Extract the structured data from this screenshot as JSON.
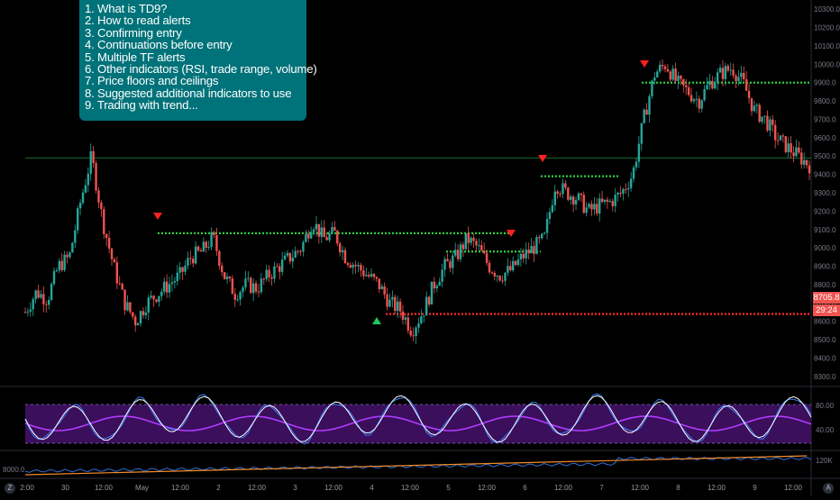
{
  "notes": [
    "1. What is TD9?",
    "2. How to read alerts",
    "3. Confirming entry",
    "4. Continuations before entry",
    "5. Multiple TF alerts",
    "6. Other indicators (RSI, trade range, volume)",
    "7. Price floors and ceilings",
    "8. Suggested additional indicators to use",
    "9. Trading with trend..."
  ],
  "price_scale": [
    "10300.0",
    "10200.0",
    "10100.0",
    "10000.0",
    "9900.0",
    "9800.0",
    "9700.0",
    "9600.0",
    "9500.0",
    "9400.0",
    "9300.0",
    "9200.0",
    "9100.0",
    "9000.0",
    "8900.0",
    "8800.0",
    "8700.0",
    "8600.0",
    "8500.0",
    "8400.0",
    "8300.0"
  ],
  "current_price": "8705.8",
  "countdown": "29:24",
  "rsi_scale": [
    "80.00",
    "40.00"
  ],
  "volume_left": "8000.0",
  "volume_right": "120K",
  "time_axis": [
    "2:00",
    "30",
    "12:00",
    "May",
    "12:00",
    "2",
    "12:00",
    "3",
    "12:00",
    "4",
    "12:00",
    "5",
    "12:00",
    "6",
    "12:00",
    "7",
    "12:00",
    "8",
    "12:00",
    "9",
    "12:00"
  ],
  "corner_left": "Z",
  "corner_right": "A",
  "colors": {
    "up": "#26a69a",
    "down": "#ef5350",
    "rsi_fill": "#3b0f5c",
    "rsi_line": "#b13cff",
    "level_green": "#2ecc40",
    "level_red": "#ff2a2a",
    "notes_bg": "#007279",
    "price_tag": "#ef5350"
  },
  "chart_data": {
    "type": "candlestick",
    "ylim": [
      8250,
      10350
    ],
    "horizontal_levels": [
      {
        "value": 9490,
        "color": "thin-green"
      },
      {
        "value": 9080,
        "color": "dotted-green"
      },
      {
        "value": 8980,
        "color": "dotted-green"
      },
      {
        "value": 8640,
        "color": "dotted-red"
      },
      {
        "value": 9390,
        "color": "dotted-green"
      },
      {
        "value": 9900,
        "color": "dotted-green"
      }
    ],
    "markers": [
      {
        "type": "sell-9",
        "at": "Apr 30 12:00"
      },
      {
        "type": "buy",
        "at": "May 4"
      },
      {
        "type": "sell-9",
        "at": "May 5 22:00"
      },
      {
        "type": "sell-9",
        "at": "May 6 12:00"
      },
      {
        "type": "sell-9",
        "at": "May 8"
      }
    ],
    "price_path": [
      8650,
      8760,
      8720,
      8900,
      8950,
      9250,
      9500,
      9150,
      8900,
      8700,
      8600,
      8700,
      8750,
      8800,
      8850,
      8950,
      8980,
      9060,
      8850,
      8750,
      8800,
      8780,
      8850,
      8900,
      8950,
      9000,
      9150,
      9050,
      9080,
      8950,
      8900,
      8850,
      8800,
      8700,
      8660,
      8550,
      8650,
      8800,
      8900,
      8950,
      9050,
      9000,
      8900,
      8850,
      8880,
      8950,
      9000,
      9050,
      9350,
      9300,
      9270,
      9200,
      9230,
      9250,
      9300,
      9400,
      9700,
      9950,
      10000,
      9900,
      9850,
      9800,
      9900,
      9950,
      9980,
      9900,
      9750,
      9700,
      9600,
      9550,
      9500,
      9450
    ]
  }
}
